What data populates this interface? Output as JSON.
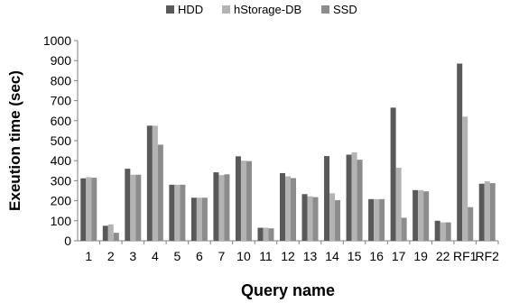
{
  "chart_data": {
    "type": "bar",
    "title": "",
    "xlabel": "Query name",
    "ylabel": "Exeution time (sec)",
    "ylim": [
      0,
      1000
    ],
    "yticks": [
      0,
      100,
      200,
      300,
      400,
      500,
      600,
      700,
      800,
      900,
      1000
    ],
    "grid": false,
    "legend_position": "top",
    "categories": [
      "1",
      "2",
      "3",
      "4",
      "5",
      "6",
      "7",
      "10",
      "11",
      "12",
      "13",
      "14",
      "15",
      "16",
      "17",
      "19",
      "22",
      "RF1",
      "RF2"
    ],
    "series": [
      {
        "name": "HDD",
        "color": "#595959",
        "values": [
          312,
          75,
          360,
          575,
          280,
          215,
          342,
          422,
          65,
          338,
          233,
          423,
          430,
          208,
          665,
          253,
          100,
          885,
          285
        ]
      },
      {
        "name": "hStorage-DB",
        "color": "#b3b3b3",
        "values": [
          318,
          82,
          330,
          575,
          280,
          215,
          328,
          400,
          65,
          322,
          222,
          237,
          442,
          208,
          365,
          253,
          92,
          620,
          297
        ]
      },
      {
        "name": "SSD",
        "color": "#8c8c8c",
        "values": [
          315,
          40,
          330,
          480,
          280,
          215,
          332,
          398,
          62,
          313,
          218,
          203,
          405,
          208,
          115,
          247,
          92,
          168,
          288
        ]
      }
    ]
  }
}
